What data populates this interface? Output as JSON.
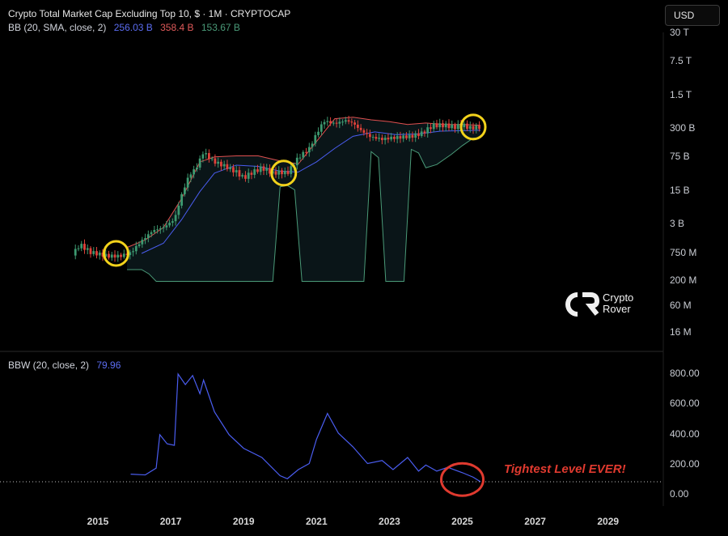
{
  "header": {
    "title": "Crypto Total Market Cap Excluding Top 10, $ · 1M · CRYPTOCAP",
    "bb_label": "BB (20, SMA, close, 2)",
    "bb_basis": "256.03 B",
    "bb_upper": "358.4 B",
    "bb_lower": "153.67 B",
    "bbw_label": "BBW (20, close, 2)",
    "bbw_value": "79.96",
    "currency": "USD"
  },
  "logo": {
    "line1": "Crypto",
    "line2": "Rover"
  },
  "annotation": "Tightest Level EVER!",
  "colors": {
    "background": "#000000",
    "basis": "#4a5df0",
    "upper": "#e05050",
    "lower": "#4a9a78",
    "candle_up": "#3d9970",
    "candle_down": "#e0413a",
    "bbw_line": "#4a5df0",
    "highlight_circle": "#f2d21b",
    "note": "#e03a2f"
  },
  "chart_data": [
    {
      "type": "line",
      "title": "Crypto Total Market Cap Excluding Top 10, $ · 1M · CRYPTOCAP",
      "scale": "log",
      "y_unit": "USD",
      "y_ticks": [
        "30 T",
        "7.5 T",
        "1.5 T",
        "300 B",
        "75 B",
        "15 B",
        "3 B",
        "750 M",
        "200 M",
        "60 M",
        "16 M"
      ],
      "x_ticks": [
        "2015",
        "2017",
        "2019",
        "2021",
        "2023",
        "2025",
        "2027",
        "2029"
      ],
      "series": [
        {
          "name": "Close",
          "x": [
            2014.3,
            2014.5,
            2014.8,
            2015.0,
            2015.3,
            2015.6,
            2015.9,
            2016.2,
            2016.5,
            2016.8,
            2017.1,
            2017.3,
            2017.5,
            2017.7,
            2017.9,
            2018.0,
            2018.2,
            2018.5,
            2018.8,
            2019.0,
            2019.2,
            2019.5,
            2019.8,
            2020.0,
            2020.2,
            2020.5,
            2020.8,
            2021.0,
            2021.2,
            2021.5,
            2021.8,
            2022.0,
            2022.2,
            2022.5,
            2022.8,
            2023.0,
            2023.3,
            2023.6,
            2023.9,
            2024.2,
            2024.5,
            2024.8,
            2025.0,
            2025.2,
            2025.5
          ],
          "values": [
            0.052,
            0.11,
            0.065,
            0.058,
            0.05,
            0.05,
            0.062,
            0.14,
            0.28,
            0.35,
            0.6,
            3.2,
            12,
            20,
            60,
            45,
            30,
            22,
            15,
            10,
            14,
            20,
            14,
            15,
            14,
            40,
            75,
            200,
            480,
            400,
            500,
            420,
            260,
            160,
            140,
            150,
            160,
            170,
            210,
            360,
            360,
            320,
            370,
            300,
            320
          ]
        },
        {
          "name": "BB Basis",
          "x": [
            2016.2,
            2016.8,
            2017.3,
            2017.8,
            2018.2,
            2018.8,
            2019.4,
            2020.0,
            2020.5,
            2021.0,
            2021.5,
            2022.0,
            2022.6,
            2023.2,
            2023.8,
            2024.4,
            2025.0,
            2025.5
          ],
          "values": [
            0.06,
            0.12,
            0.6,
            4,
            14,
            24,
            22,
            16,
            15,
            30,
            75,
            170,
            230,
            190,
            200,
            240,
            250,
            256
          ]
        },
        {
          "name": "BB Upper",
          "x": [
            2015.8,
            2016.3,
            2016.8,
            2017.3,
            2017.8,
            2018.2,
            2018.8,
            2019.4,
            2020.0,
            2020.5,
            2021.0,
            2021.5,
            2022.0,
            2022.5,
            2023.0,
            2023.5,
            2024.0,
            2024.5,
            2025.0,
            2025.5
          ],
          "values": [
            0.09,
            0.15,
            0.35,
            2.5,
            30,
            42,
            45,
            45,
            32,
            26,
            120,
            560,
            620,
            520,
            460,
            380,
            420,
            380,
            380,
            358
          ]
        },
        {
          "name": "BB Lower",
          "x": [
            2015.8,
            2016.2,
            2016.4,
            2016.6,
            2019.8,
            2020.0,
            2020.2,
            2020.4,
            2020.6,
            2022.3,
            2022.5,
            2022.7,
            2022.9,
            2023.4,
            2023.6,
            2023.8,
            2024.0,
            2024.3,
            2024.7,
            2025.0,
            2025.3,
            2025.5
          ],
          "values": [
            0.02,
            0.02,
            0.015,
            0.009,
            0.009,
            5.5,
            6,
            4.5,
            0.009,
            0.009,
            60,
            40,
            0.009,
            0.009,
            70,
            55,
            20,
            25,
            50,
            90,
            150,
            154
          ]
        }
      ]
    },
    {
      "type": "line",
      "title": "BBW (20, close, 2)",
      "y_ticks": [
        "800.00",
        "600.00",
        "400.00",
        "200.00",
        "0.00"
      ],
      "ylim": [
        0,
        850
      ],
      "series": [
        {
          "name": "BBW",
          "x": [
            2015.9,
            2016.3,
            2016.6,
            2016.7,
            2016.9,
            2017.1,
            2017.2,
            2017.4,
            2017.6,
            2017.8,
            2017.9,
            2018.0,
            2018.2,
            2018.6,
            2019.0,
            2019.5,
            2020.0,
            2020.2,
            2020.5,
            2020.8,
            2021.0,
            2021.3,
            2021.6,
            2022.0,
            2022.4,
            2022.8,
            2023.1,
            2023.5,
            2023.8,
            2024.0,
            2024.3,
            2024.6,
            2025.0,
            2025.3,
            2025.5
          ],
          "values": [
            130,
            125,
            170,
            390,
            330,
            320,
            790,
            720,
            780,
            660,
            750,
            680,
            540,
            390,
            300,
            240,
            120,
            100,
            160,
            200,
            360,
            530,
            400,
            310,
            200,
            220,
            160,
            240,
            150,
            190,
            150,
            175,
            140,
            110,
            80
          ]
        }
      ]
    }
  ]
}
